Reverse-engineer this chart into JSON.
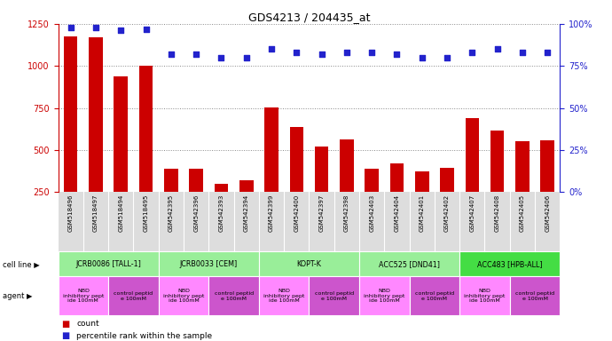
{
  "title": "GDS4213 / 204435_at",
  "samples": [
    "GSM518496",
    "GSM518497",
    "GSM518494",
    "GSM518495",
    "GSM542395",
    "GSM542396",
    "GSM542393",
    "GSM542394",
    "GSM542399",
    "GSM542400",
    "GSM542397",
    "GSM542398",
    "GSM542403",
    "GSM542404",
    "GSM542401",
    "GSM542402",
    "GSM542407",
    "GSM542408",
    "GSM542405",
    "GSM542406"
  ],
  "counts": [
    1175,
    1170,
    940,
    1000,
    390,
    390,
    300,
    320,
    755,
    635,
    520,
    565,
    390,
    420,
    370,
    395,
    690,
    615,
    550,
    560
  ],
  "percentile": [
    98,
    98,
    96,
    97,
    82,
    82,
    80,
    80,
    85,
    83,
    82,
    83,
    83,
    82,
    80,
    80,
    83,
    85,
    83,
    83
  ],
  "cell_lines": [
    {
      "label": "JCRB0086 [TALL-1]",
      "start": 0,
      "end": 4,
      "color": "#99EE99"
    },
    {
      "label": "JCRB0033 [CEM]",
      "start": 4,
      "end": 8,
      "color": "#99EE99"
    },
    {
      "label": "KOPT-K",
      "start": 8,
      "end": 12,
      "color": "#99EE99"
    },
    {
      "label": "ACC525 [DND41]",
      "start": 12,
      "end": 16,
      "color": "#99EE99"
    },
    {
      "label": "ACC483 [HPB-ALL]",
      "start": 16,
      "end": 20,
      "color": "#44DD44"
    }
  ],
  "agents": [
    {
      "label": "NBD\ninhibitory pept\nide 100mM",
      "start": 0,
      "end": 2,
      "color": "#FF88FF"
    },
    {
      "label": "control peptid\ne 100mM",
      "start": 2,
      "end": 4,
      "color": "#CC55CC"
    },
    {
      "label": "NBD\ninhibitory pept\nide 100mM",
      "start": 4,
      "end": 6,
      "color": "#FF88FF"
    },
    {
      "label": "control peptid\ne 100mM",
      "start": 6,
      "end": 8,
      "color": "#CC55CC"
    },
    {
      "label": "NBD\ninhibitory pept\nide 100mM",
      "start": 8,
      "end": 10,
      "color": "#FF88FF"
    },
    {
      "label": "control peptid\ne 100mM",
      "start": 10,
      "end": 12,
      "color": "#CC55CC"
    },
    {
      "label": "NBD\ninhibitory pept\nide 100mM",
      "start": 12,
      "end": 14,
      "color": "#FF88FF"
    },
    {
      "label": "control peptid\ne 100mM",
      "start": 14,
      "end": 16,
      "color": "#CC55CC"
    },
    {
      "label": "NBD\ninhibitory pept\nide 100mM",
      "start": 16,
      "end": 18,
      "color": "#FF88FF"
    },
    {
      "label": "control peptid\ne 100mM",
      "start": 18,
      "end": 20,
      "color": "#CC55CC"
    }
  ],
  "ylim_left": [
    250,
    1250
  ],
  "yticks_left": [
    250,
    500,
    750,
    1000,
    1250
  ],
  "ylim_right": [
    0,
    100
  ],
  "yticks_right": [
    0,
    25,
    50,
    75,
    100
  ],
  "bar_color": "#CC0000",
  "dot_color": "#2222CC",
  "grid_color": "#888888",
  "axis_color_left": "#CC0000",
  "axis_color_right": "#2222CC",
  "tick_bg_color": "#DDDDDD",
  "right_pct_tick_labels": [
    "0%",
    "25%",
    "50%",
    "75%",
    "100%"
  ]
}
